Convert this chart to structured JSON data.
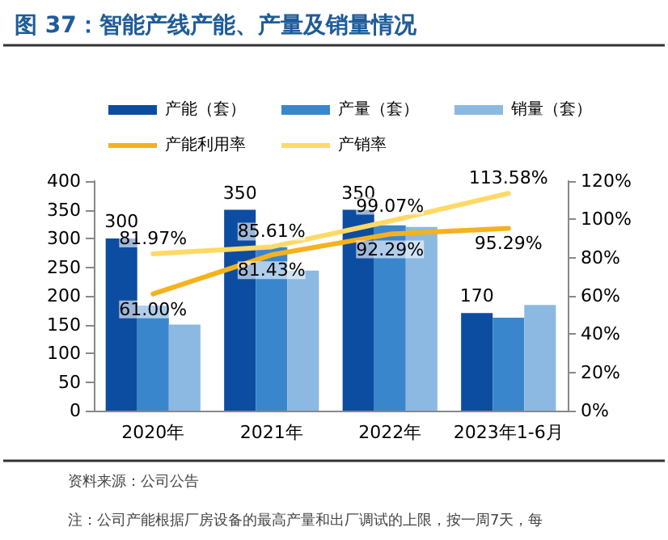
{
  "chart_data": {
    "type": "bar",
    "title": "图 37：智能产线产能、产量及销量情况",
    "categories": [
      "2020年",
      "2021年",
      "2022年",
      "2023年1-6月"
    ],
    "series": [
      {
        "name": "产能（套）",
        "color": "#0d4da1",
        "values": [
          300,
          350,
          350,
          170
        ],
        "value_labels": [
          "300",
          "350",
          "350",
          "170"
        ]
      },
      {
        "name": "产量（套）",
        "color": "#3a86cc",
        "values": [
          183,
          285,
          323,
          162
        ]
      },
      {
        "name": "销量（套）",
        "color": "#8cb9e2",
        "values": [
          150,
          244,
          320,
          184
        ]
      },
      {
        "name": "产能利用率",
        "type": "line",
        "axis": "y2",
        "color": "#f5b21c",
        "values": [
          61.0,
          81.43,
          92.29,
          95.29
        ],
        "value_labels": [
          "61.00%",
          "81.43%",
          "92.29%",
          "95.29%"
        ]
      },
      {
        "name": "产销率",
        "type": "line",
        "axis": "y2",
        "color": "#ffd966",
        "values": [
          81.97,
          85.61,
          99.07,
          113.58
        ],
        "value_labels": [
          "81.97%",
          "85.61%",
          "99.07%",
          "113.58%"
        ]
      }
    ],
    "ylim": [
      0,
      400
    ],
    "yticks": [
      0,
      50,
      100,
      150,
      200,
      250,
      300,
      350,
      400
    ],
    "y2lim": [
      0,
      120
    ],
    "y2ticks": [
      {
        "value": 0,
        "label": "0%"
      },
      {
        "value": 20,
        "label": "20%"
      },
      {
        "value": 40,
        "label": "40%"
      },
      {
        "value": 60,
        "label": "60%"
      },
      {
        "value": 80,
        "label": "80%"
      },
      {
        "value": 100,
        "label": "100%"
      },
      {
        "value": 120,
        "label": "120%"
      }
    ],
    "grid": false,
    "legend": "top",
    "marker": "none",
    "line_style": "solid",
    "annotations": [
      "资料来源：公司公告",
      "注：公司产能根据厂房设备的最高产量和出厂调试的上限，按一周7天，每"
    ]
  }
}
